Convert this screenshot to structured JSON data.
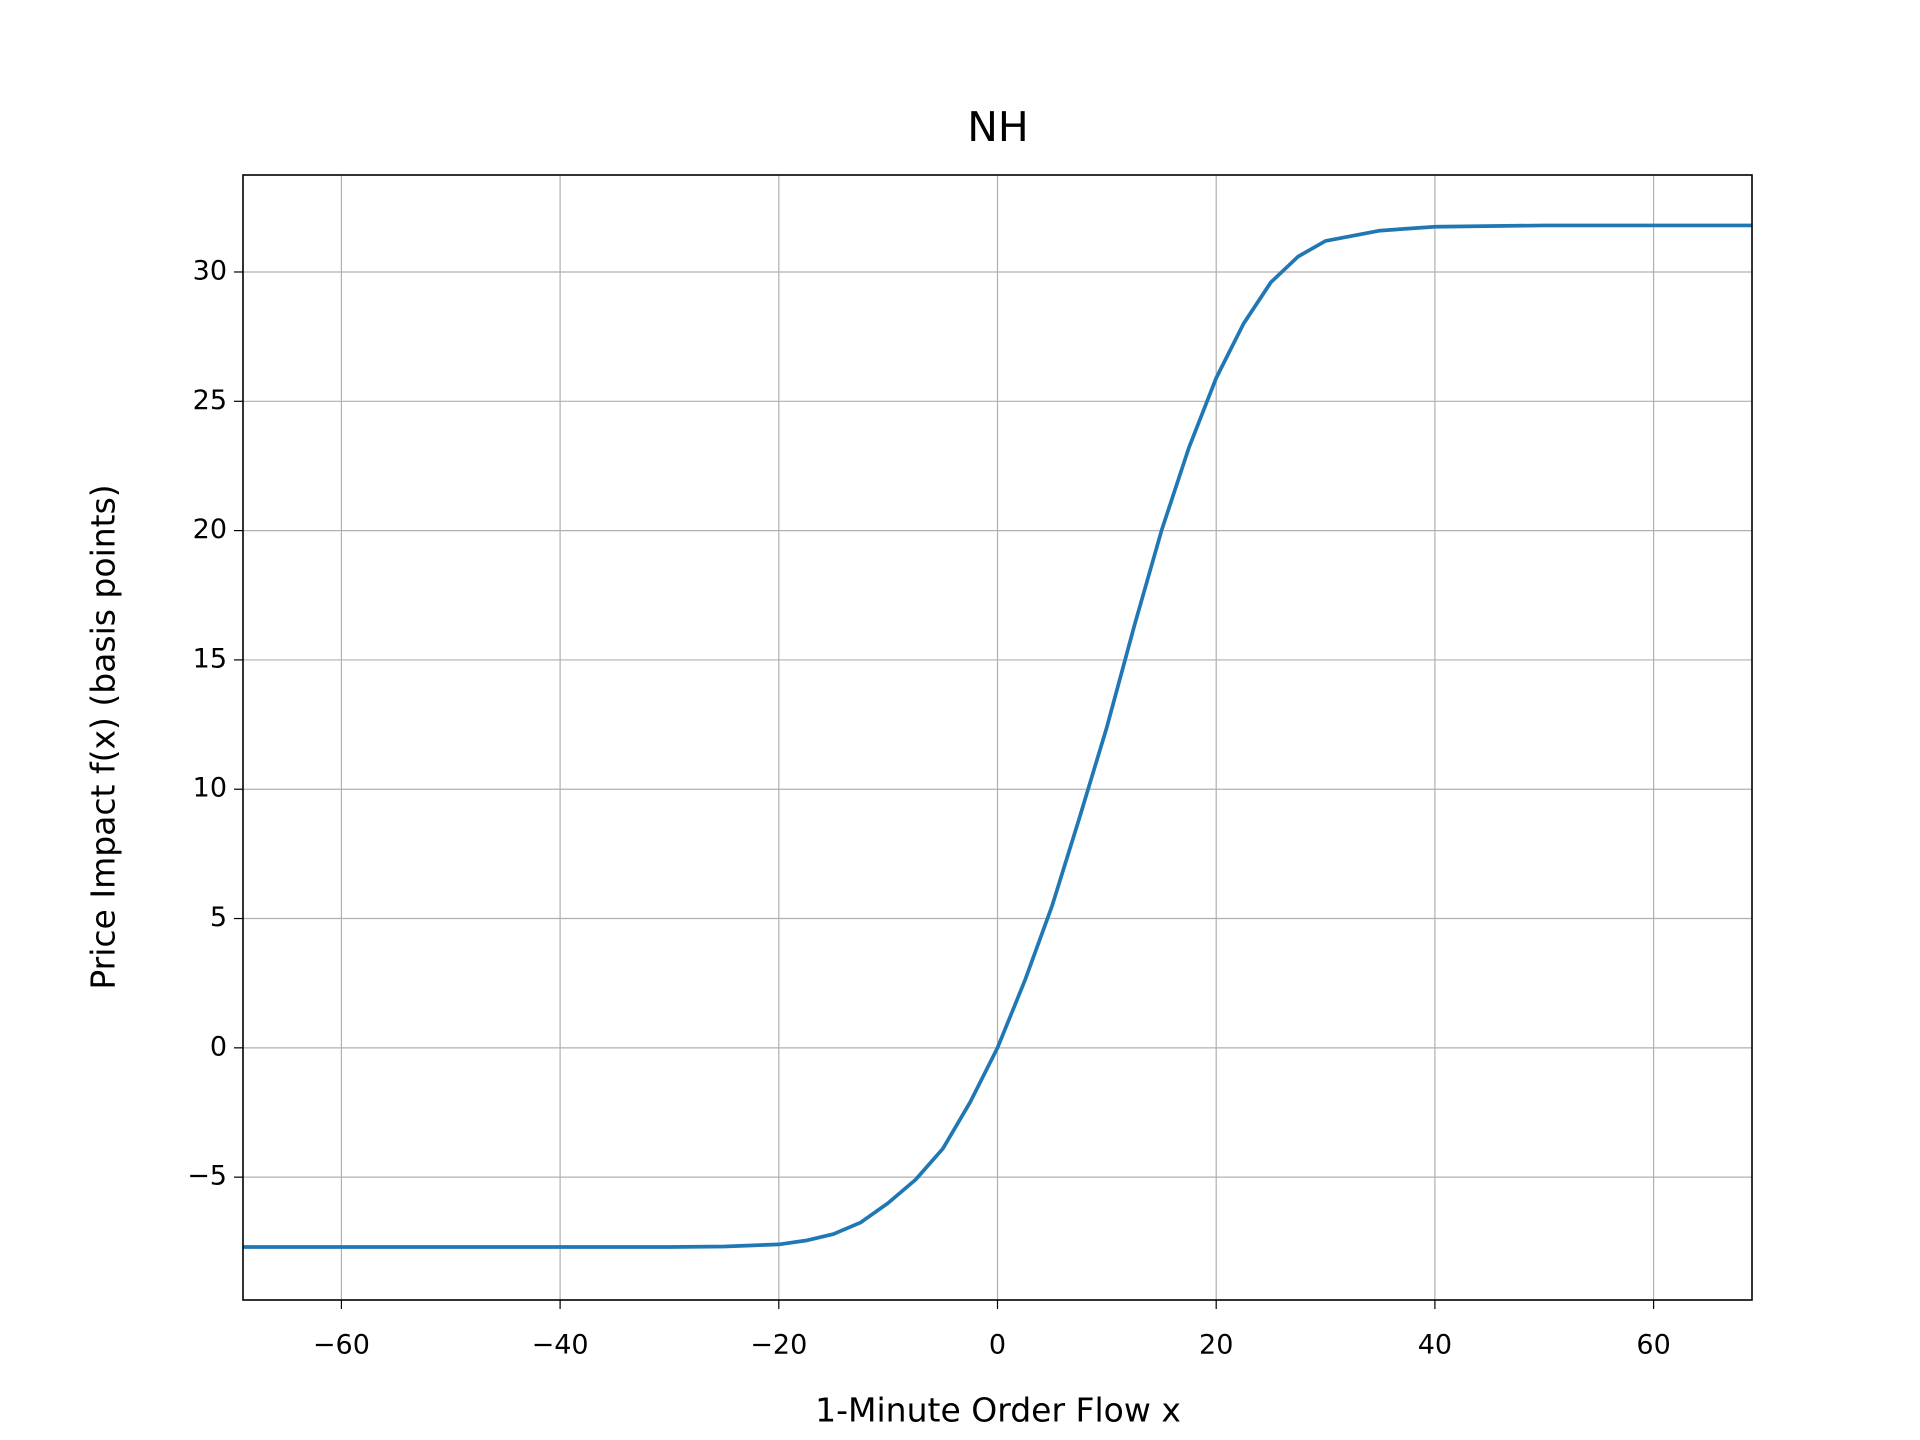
{
  "chart_data": {
    "type": "line",
    "title": "NH",
    "xlabel": "1-Minute Order Flow x",
    "ylabel": "Price Impact f(x) (basis points)",
    "x": [
      -69,
      -40,
      -30,
      -25,
      -20,
      -17.5,
      -15,
      -12.5,
      -10,
      -7.5,
      -5,
      -2.5,
      0,
      2.5,
      5,
      7.5,
      10,
      12.5,
      15,
      17.5,
      20,
      22.5,
      25,
      27.5,
      30,
      35,
      40,
      50,
      69
    ],
    "series": [
      {
        "color": "#1f77b4",
        "values": [
          -7.7,
          -7.7,
          -7.7,
          -7.68,
          -7.6,
          -7.45,
          -7.2,
          -6.75,
          -6.0,
          -5.1,
          -3.9,
          -2.1,
          0,
          2.6,
          5.5,
          8.9,
          12.4,
          16.3,
          20.0,
          23.2,
          25.9,
          28.0,
          29.6,
          30.6,
          31.2,
          31.6,
          31.75,
          31.8,
          31.8
        ]
      }
    ],
    "xlim": [
      -69,
      69
    ],
    "ylim": [
      -9.75,
      33.75
    ],
    "xticks": [
      {
        "value": -60,
        "label": "−60"
      },
      {
        "value": -40,
        "label": "−40"
      },
      {
        "value": -20,
        "label": "−20"
      },
      0,
      20,
      40,
      60
    ],
    "yticks": [
      {
        "value": -5,
        "label": "−5"
      },
      0,
      5,
      10,
      15,
      20,
      25,
      30
    ],
    "grid": true
  }
}
